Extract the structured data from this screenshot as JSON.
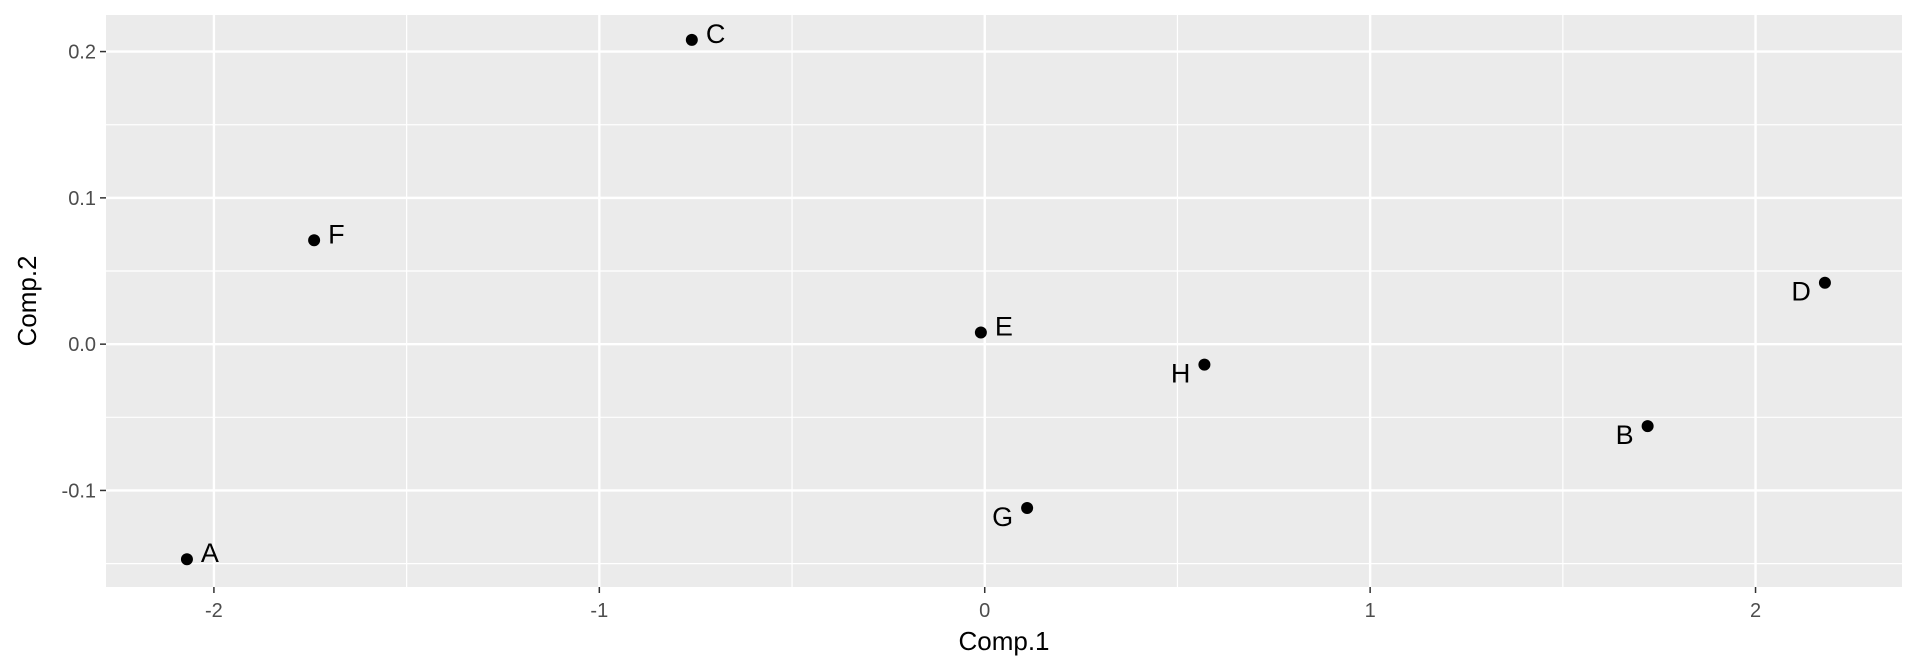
{
  "chart_data": {
    "type": "scatter",
    "title": "",
    "xlabel": "Comp.1",
    "ylabel": "Comp.2",
    "xlim": [
      -2.28,
      2.38
    ],
    "ylim": [
      -0.166,
      0.225
    ],
    "x_ticks": [
      -2,
      -1,
      0,
      1,
      2
    ],
    "x_tick_labels": [
      "-2",
      "-1",
      "0",
      "1",
      "2"
    ],
    "y_ticks": [
      -0.1,
      0.0,
      0.1,
      0.2
    ],
    "y_tick_labels": [
      "-0.1",
      "0.0",
      "0.1",
      "0.2"
    ],
    "grid": true,
    "legend": "none",
    "colors": {
      "panel": "#ebebeb",
      "grid": "#ffffff",
      "point": "#000000",
      "tick_text": "#4d4d4d"
    },
    "points": [
      {
        "label": "A",
        "x": -2.07,
        "y": -0.147,
        "label_side": "right"
      },
      {
        "label": "B",
        "x": 1.72,
        "y": -0.056,
        "label_side": "left"
      },
      {
        "label": "C",
        "x": -0.76,
        "y": 0.208,
        "label_side": "right"
      },
      {
        "label": "D",
        "x": 2.18,
        "y": 0.042,
        "label_side": "left"
      },
      {
        "label": "E",
        "x": -0.01,
        "y": 0.008,
        "label_side": "right"
      },
      {
        "label": "F",
        "x": -1.74,
        "y": 0.071,
        "label_side": "right"
      },
      {
        "label": "G",
        "x": 0.11,
        "y": -0.112,
        "label_side": "left"
      },
      {
        "label": "H",
        "x": 0.57,
        "y": -0.014,
        "label_side": "left"
      }
    ]
  }
}
